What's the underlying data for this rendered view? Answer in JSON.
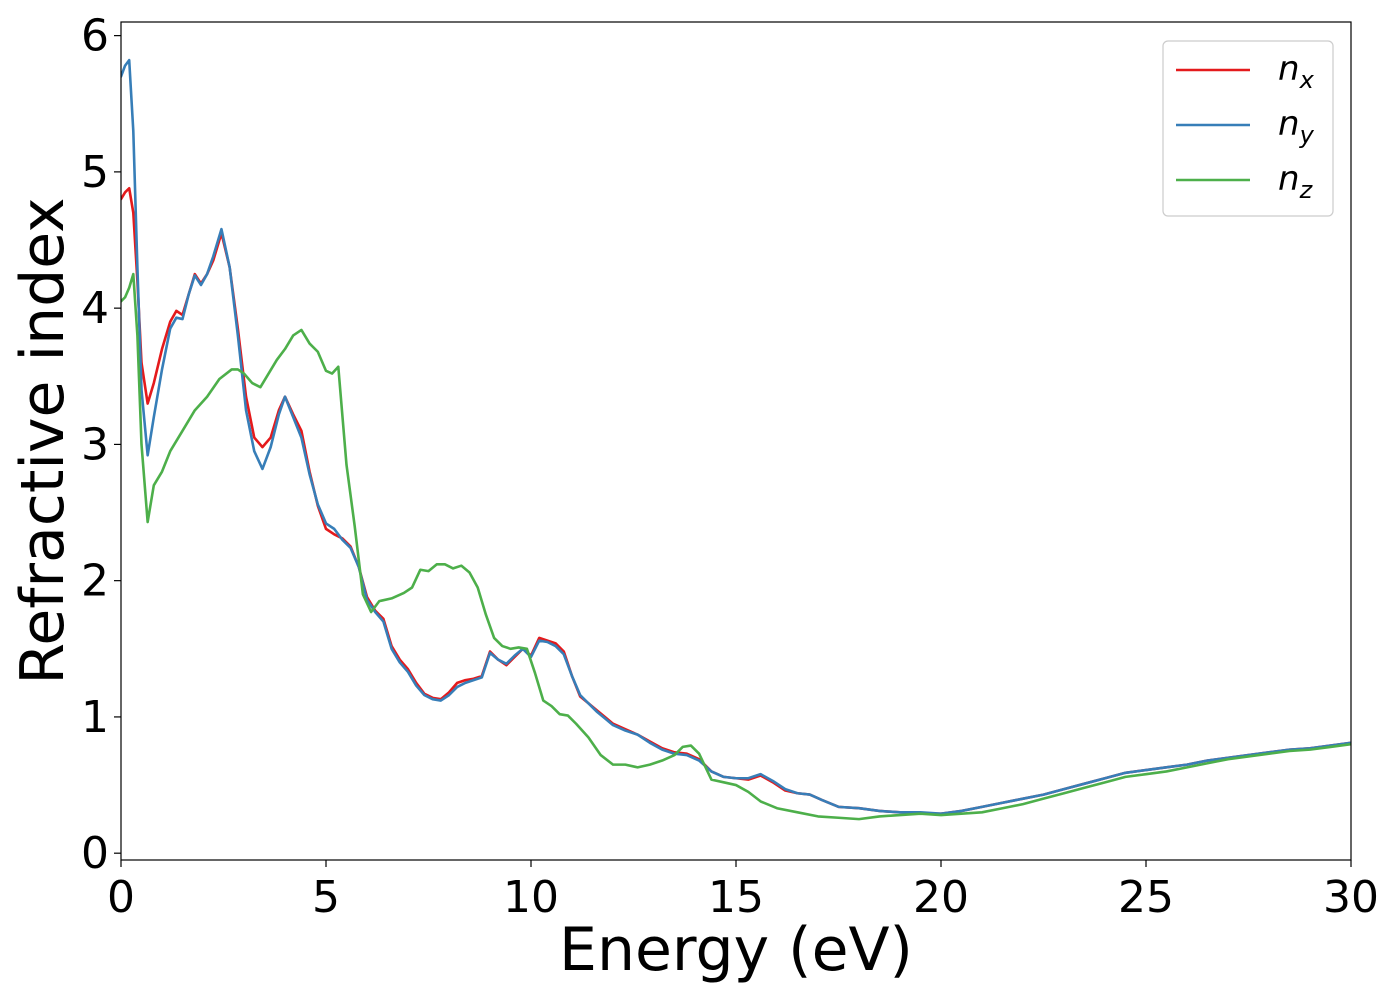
{
  "chart_data": {
    "type": "line",
    "title": "",
    "xlabel": "Energy (eV)",
    "ylabel": "Refractive index",
    "xlim": [
      0,
      30
    ],
    "ylim": [
      -0.05,
      6.1
    ],
    "xticks": [
      0,
      5,
      10,
      15,
      20,
      25,
      30
    ],
    "yticks": [
      0,
      1,
      2,
      3,
      4,
      5,
      6
    ],
    "grid": false,
    "legend_position": "top-right",
    "series": [
      {
        "name": "n_x",
        "label_base": "n",
        "label_sub": "x",
        "color": "#e41a1c",
        "x": [
          0,
          0.1,
          0.2,
          0.3,
          0.4,
          0.5,
          0.65,
          0.8,
          1.0,
          1.2,
          1.35,
          1.5,
          1.65,
          1.8,
          1.95,
          2.1,
          2.25,
          2.45,
          2.65,
          2.85,
          3.05,
          3.25,
          3.45,
          3.65,
          3.85,
          4.0,
          4.2,
          4.4,
          4.6,
          4.8,
          5.0,
          5.2,
          5.4,
          5.6,
          5.8,
          6.0,
          6.2,
          6.4,
          6.6,
          6.8,
          7.0,
          7.2,
          7.4,
          7.6,
          7.8,
          8.0,
          8.2,
          8.4,
          8.6,
          8.8,
          9.0,
          9.2,
          9.4,
          9.6,
          9.8,
          10.0,
          10.2,
          10.4,
          10.6,
          10.8,
          11.0,
          11.2,
          11.4,
          11.6,
          11.8,
          12.0,
          12.3,
          12.6,
          12.9,
          13.2,
          13.5,
          13.8,
          14.1,
          14.4,
          14.7,
          15.0,
          15.3,
          15.6,
          15.9,
          16.2,
          16.5,
          16.8,
          17.1,
          17.5,
          18.0,
          18.5,
          19.0,
          19.5,
          20.0,
          20.5,
          21.0,
          21.5,
          22.0,
          22.5,
          23.0,
          23.5,
          24.0,
          24.5,
          25.0,
          25.5,
          26.0,
          26.5,
          27.0,
          27.5,
          28.0,
          28.5,
          29.0,
          29.5,
          30.0
        ],
        "y": [
          4.8,
          4.85,
          4.88,
          4.7,
          4.2,
          3.6,
          3.3,
          3.45,
          3.7,
          3.9,
          3.98,
          3.95,
          4.1,
          4.25,
          4.18,
          4.25,
          4.35,
          4.55,
          4.3,
          3.85,
          3.35,
          3.05,
          2.98,
          3.05,
          3.25,
          3.35,
          3.22,
          3.1,
          2.8,
          2.55,
          2.38,
          2.34,
          2.31,
          2.25,
          2.1,
          1.88,
          1.78,
          1.72,
          1.52,
          1.42,
          1.35,
          1.25,
          1.17,
          1.14,
          1.13,
          1.18,
          1.25,
          1.27,
          1.28,
          1.3,
          1.48,
          1.42,
          1.38,
          1.44,
          1.5,
          1.45,
          1.58,
          1.56,
          1.54,
          1.48,
          1.3,
          1.15,
          1.1,
          1.05,
          1.0,
          0.95,
          0.91,
          0.87,
          0.82,
          0.77,
          0.74,
          0.73,
          0.69,
          0.6,
          0.56,
          0.55,
          0.54,
          0.57,
          0.52,
          0.46,
          0.44,
          0.43,
          0.39,
          0.34,
          0.33,
          0.31,
          0.3,
          0.29,
          0.29,
          0.31,
          0.34,
          0.37,
          0.4,
          0.43,
          0.47,
          0.51,
          0.55,
          0.59,
          0.61,
          0.63,
          0.65,
          0.68,
          0.7,
          0.72,
          0.74,
          0.76,
          0.77,
          0.79,
          0.81
        ]
      },
      {
        "name": "n_y",
        "label_base": "n",
        "label_sub": "y",
        "color": "#377eb8",
        "x": [
          0,
          0.1,
          0.2,
          0.3,
          0.4,
          0.5,
          0.65,
          0.8,
          1.0,
          1.2,
          1.35,
          1.5,
          1.65,
          1.8,
          1.95,
          2.1,
          2.25,
          2.45,
          2.65,
          2.85,
          3.05,
          3.25,
          3.45,
          3.65,
          3.85,
          4.0,
          4.2,
          4.4,
          4.6,
          4.8,
          5.0,
          5.2,
          5.4,
          5.6,
          5.8,
          6.0,
          6.2,
          6.4,
          6.6,
          6.8,
          7.0,
          7.2,
          7.4,
          7.6,
          7.8,
          8.0,
          8.2,
          8.4,
          8.6,
          8.8,
          9.0,
          9.2,
          9.4,
          9.6,
          9.8,
          10.0,
          10.2,
          10.4,
          10.6,
          10.8,
          11.0,
          11.2,
          11.4,
          11.6,
          11.8,
          12.0,
          12.3,
          12.6,
          12.9,
          13.2,
          13.5,
          13.8,
          14.1,
          14.4,
          14.7,
          15.0,
          15.3,
          15.6,
          15.9,
          16.2,
          16.5,
          16.8,
          17.1,
          17.5,
          18.0,
          18.5,
          19.0,
          19.5,
          20.0,
          20.5,
          21.0,
          21.5,
          22.0,
          22.5,
          23.0,
          23.5,
          24.0,
          24.5,
          25.0,
          25.5,
          26.0,
          26.5,
          27.0,
          27.5,
          28.0,
          28.5,
          29.0,
          29.5,
          30.0
        ],
        "y": [
          5.7,
          5.78,
          5.82,
          5.3,
          4.3,
          3.4,
          2.92,
          3.2,
          3.55,
          3.85,
          3.93,
          3.92,
          4.1,
          4.24,
          4.17,
          4.25,
          4.38,
          4.58,
          4.3,
          3.8,
          3.25,
          2.95,
          2.82,
          2.98,
          3.22,
          3.35,
          3.2,
          3.05,
          2.78,
          2.56,
          2.42,
          2.38,
          2.3,
          2.24,
          2.1,
          1.86,
          1.77,
          1.7,
          1.5,
          1.4,
          1.33,
          1.23,
          1.16,
          1.13,
          1.12,
          1.16,
          1.22,
          1.25,
          1.27,
          1.29,
          1.47,
          1.42,
          1.39,
          1.45,
          1.5,
          1.44,
          1.56,
          1.55,
          1.52,
          1.46,
          1.3,
          1.16,
          1.1,
          1.04,
          0.99,
          0.94,
          0.9,
          0.87,
          0.81,
          0.76,
          0.73,
          0.72,
          0.68,
          0.6,
          0.56,
          0.55,
          0.55,
          0.58,
          0.53,
          0.47,
          0.44,
          0.43,
          0.39,
          0.34,
          0.33,
          0.31,
          0.3,
          0.3,
          0.29,
          0.31,
          0.34,
          0.37,
          0.4,
          0.43,
          0.47,
          0.51,
          0.55,
          0.59,
          0.61,
          0.63,
          0.65,
          0.68,
          0.7,
          0.72,
          0.74,
          0.76,
          0.77,
          0.79,
          0.81
        ]
      },
      {
        "name": "n_z",
        "label_base": "n",
        "label_sub": "z",
        "color": "#4daf4a",
        "x": [
          0,
          0.1,
          0.2,
          0.3,
          0.4,
          0.5,
          0.65,
          0.8,
          1.0,
          1.2,
          1.5,
          1.8,
          2.1,
          2.4,
          2.7,
          2.85,
          3.0,
          3.2,
          3.4,
          3.6,
          3.8,
          4.0,
          4.2,
          4.4,
          4.6,
          4.8,
          5.0,
          5.15,
          5.3,
          5.5,
          5.7,
          5.9,
          6.1,
          6.3,
          6.6,
          6.9,
          7.1,
          7.3,
          7.5,
          7.7,
          7.9,
          8.1,
          8.3,
          8.5,
          8.7,
          8.9,
          9.1,
          9.3,
          9.5,
          9.7,
          9.9,
          10.1,
          10.3,
          10.5,
          10.7,
          10.9,
          11.1,
          11.4,
          11.7,
          12.0,
          12.3,
          12.6,
          12.9,
          13.2,
          13.5,
          13.7,
          13.9,
          14.1,
          14.4,
          14.7,
          15.0,
          15.3,
          15.6,
          16.0,
          16.5,
          17.0,
          17.5,
          18.0,
          18.5,
          19.0,
          19.5,
          20.0,
          20.5,
          21.0,
          21.5,
          22.0,
          22.5,
          23.0,
          23.5,
          24.0,
          24.5,
          25.0,
          25.5,
          26.0,
          26.5,
          27.0,
          27.5,
          28.0,
          28.5,
          29.0,
          29.5,
          30.0
        ],
        "y": [
          4.05,
          4.08,
          4.15,
          4.25,
          3.8,
          3.0,
          2.43,
          2.7,
          2.8,
          2.95,
          3.1,
          3.25,
          3.35,
          3.48,
          3.55,
          3.55,
          3.52,
          3.45,
          3.42,
          3.52,
          3.62,
          3.7,
          3.8,
          3.84,
          3.74,
          3.68,
          3.54,
          3.52,
          3.57,
          2.85,
          2.4,
          1.9,
          1.77,
          1.85,
          1.87,
          1.91,
          1.95,
          2.08,
          2.07,
          2.12,
          2.12,
          2.09,
          2.11,
          2.06,
          1.95,
          1.75,
          1.58,
          1.52,
          1.5,
          1.51,
          1.5,
          1.32,
          1.12,
          1.08,
          1.02,
          1.01,
          0.95,
          0.85,
          0.72,
          0.65,
          0.65,
          0.63,
          0.65,
          0.68,
          0.72,
          0.78,
          0.79,
          0.73,
          0.54,
          0.52,
          0.5,
          0.45,
          0.38,
          0.33,
          0.3,
          0.27,
          0.26,
          0.25,
          0.27,
          0.28,
          0.29,
          0.28,
          0.29,
          0.3,
          0.33,
          0.36,
          0.4,
          0.44,
          0.48,
          0.52,
          0.56,
          0.58,
          0.6,
          0.63,
          0.66,
          0.69,
          0.71,
          0.73,
          0.75,
          0.76,
          0.78,
          0.8
        ]
      }
    ]
  }
}
